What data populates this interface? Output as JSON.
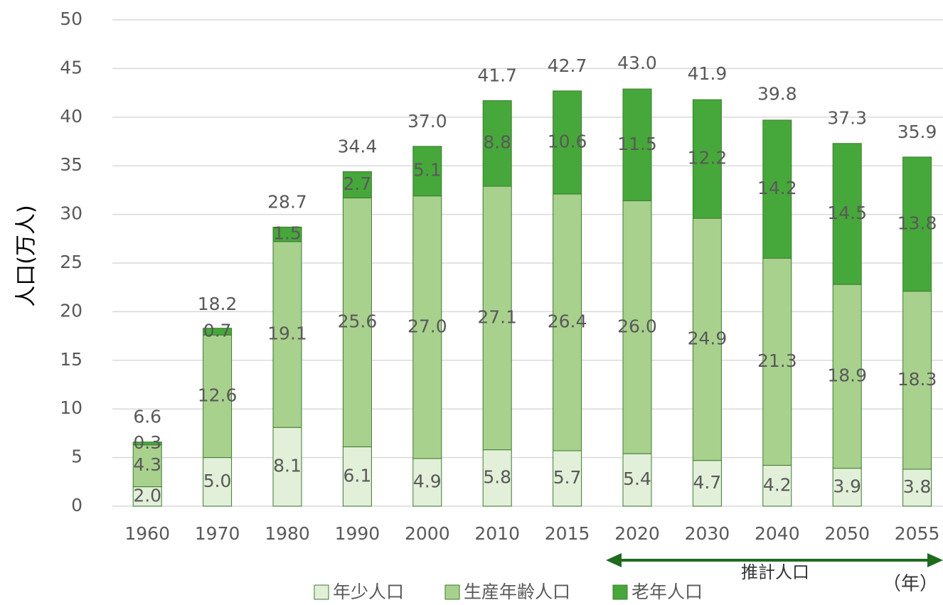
{
  "chart_data": {
    "type": "stacked_bar",
    "y_label": "人口(万人)",
    "x_unit_label": "（年）",
    "annotation": "推計人口",
    "categories": [
      "1960",
      "1970",
      "1980",
      "1990",
      "2000",
      "2010",
      "2015",
      "2020",
      "2030",
      "2040",
      "2050",
      "2055"
    ],
    "series": [
      {
        "name": "年少人口",
        "color": "#e2f0d9",
        "values": [
          2.0,
          5.0,
          8.1,
          6.1,
          4.9,
          5.8,
          5.7,
          5.4,
          4.7,
          4.2,
          3.9,
          3.8
        ],
        "value_labels": [
          "2.0",
          "5.0",
          "8.1",
          "6.1",
          "4.9",
          "5.8",
          "5.7",
          "5.4",
          "4.7",
          "4.2",
          "3.9",
          "3.8"
        ]
      },
      {
        "name": "生産年齢人口",
        "color": "#a9d18e",
        "values": [
          4.3,
          12.6,
          19.1,
          25.6,
          27.0,
          27.1,
          26.4,
          26.0,
          24.9,
          21.3,
          18.9,
          18.3
        ],
        "value_labels": [
          "4.3",
          "12.6",
          "19.1",
          "25.6",
          "27.0",
          "27.1",
          "26.4",
          "26.0",
          "24.9",
          "21.3",
          "18.9",
          "18.3"
        ]
      },
      {
        "name": "老年人口",
        "color": "#46a83a",
        "values": [
          0.3,
          0.7,
          1.5,
          2.7,
          5.1,
          8.8,
          10.6,
          11.5,
          12.2,
          14.2,
          14.5,
          13.8
        ],
        "value_labels": [
          "0.3",
          "0.7",
          "1.5",
          "2.7",
          "5.1",
          "8.8",
          "10.6",
          "11.5",
          "12.2",
          "14.2",
          "14.5",
          "13.8"
        ]
      }
    ],
    "totals": [
      6.6,
      18.2,
      28.7,
      34.4,
      37.0,
      41.7,
      42.7,
      43.0,
      41.9,
      39.8,
      37.3,
      35.9
    ],
    "total_labels": [
      "6.6",
      "18.2",
      "28.7",
      "34.4",
      "37.0",
      "41.7",
      "42.7",
      "43.0",
      "41.9",
      "39.8",
      "37.3",
      "35.9"
    ],
    "ylim": [
      0,
      50
    ],
    "yticks": [
      0,
      5,
      10,
      15,
      20,
      25,
      30,
      35,
      40,
      45,
      50
    ],
    "grid": true
  }
}
